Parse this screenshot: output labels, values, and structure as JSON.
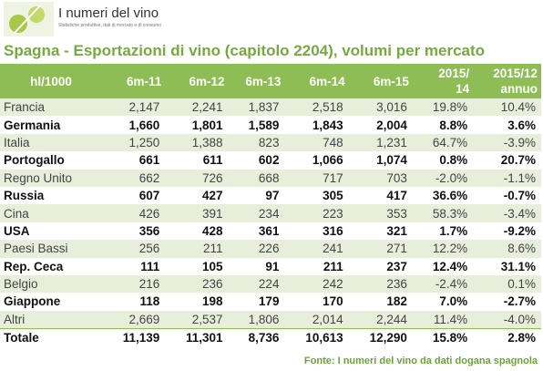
{
  "header": {
    "brand": "I numeri del vino",
    "tagline": "Statistiche produttive, dati di mercato e di consumo"
  },
  "title": "Spagna - Esportazioni di vino (capitolo 2204), volumi per mercato",
  "table": {
    "columns": [
      [
        "hl/1000"
      ],
      [
        "6m-11"
      ],
      [
        "6m-12"
      ],
      [
        "6m-13"
      ],
      [
        "6m-14"
      ],
      [
        "6m-15"
      ],
      [
        "2015/",
        "14"
      ],
      [
        "2015/12",
        "annuo"
      ]
    ],
    "rows": [
      [
        "Francia",
        "2,147",
        "2,241",
        "1,837",
        "2,518",
        "3,016",
        "19.8%",
        "10.4%"
      ],
      [
        "Germania",
        "1,660",
        "1,801",
        "1,589",
        "1,843",
        "2,004",
        "8.8%",
        "3.6%"
      ],
      [
        "Italia",
        "1,250",
        "1,388",
        "823",
        "748",
        "1,231",
        "64.7%",
        "-3.9%"
      ],
      [
        "Portogallo",
        "661",
        "611",
        "602",
        "1,066",
        "1,074",
        "0.8%",
        "20.7%"
      ],
      [
        "Regno Unito",
        "662",
        "726",
        "668",
        "717",
        "703",
        "-2.0%",
        "-1.1%"
      ],
      [
        "Russia",
        "607",
        "427",
        "97",
        "305",
        "417",
        "36.6%",
        "-0.7%"
      ],
      [
        "Cina",
        "426",
        "391",
        "234",
        "223",
        "353",
        "58.3%",
        "-3.4%"
      ],
      [
        "USA",
        "356",
        "428",
        "361",
        "316",
        "321",
        "1.7%",
        "-9.2%"
      ],
      [
        "Paesi Bassi",
        "256",
        "211",
        "226",
        "241",
        "271",
        "12.2%",
        "8.6%"
      ],
      [
        "Rep. Ceca",
        "111",
        "105",
        "91",
        "211",
        "237",
        "12.4%",
        "31.1%"
      ],
      [
        "Belgio",
        "216",
        "236",
        "224",
        "242",
        "236",
        "-2.4%",
        "0.1%"
      ],
      [
        "Giappone",
        "118",
        "198",
        "179",
        "170",
        "182",
        "7.0%",
        "-2.7%"
      ],
      [
        "Altri",
        "2,669",
        "2,537",
        "1,806",
        "2,014",
        "2,244",
        "11.4%",
        "-4.0%"
      ],
      [
        "Totale",
        "11,139",
        "11,301",
        "8,736",
        "10,613",
        "12,290",
        "15.8%",
        "2.8%"
      ]
    ]
  },
  "source": "Fonte: I numeri del vino da dati dogana spagnola"
}
